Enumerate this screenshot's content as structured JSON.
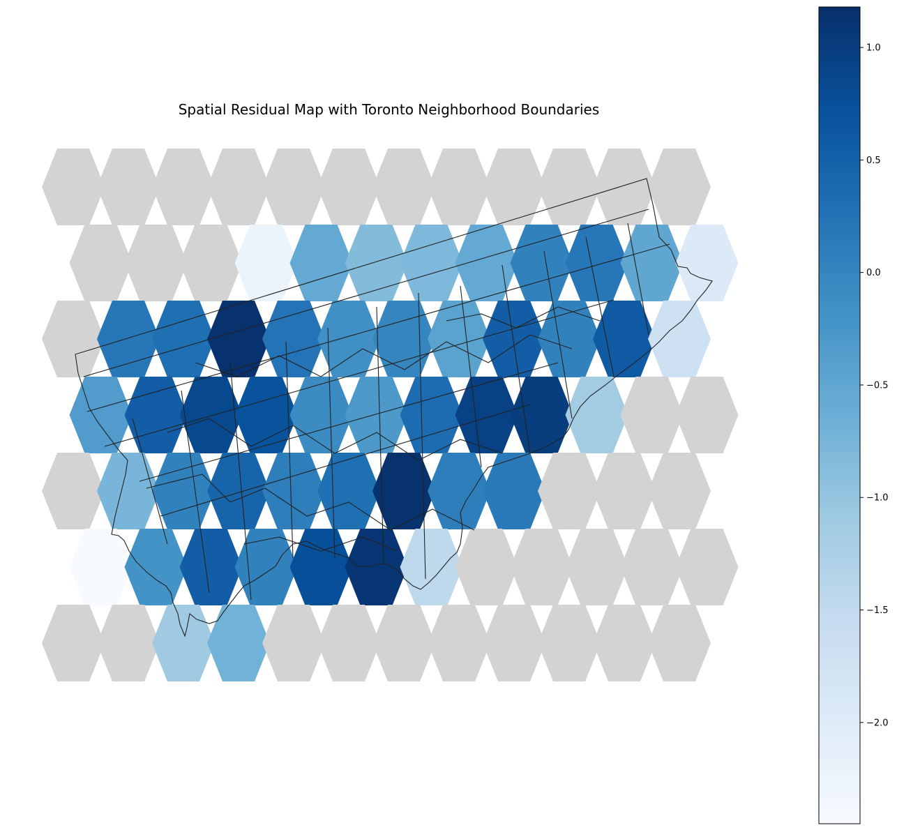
{
  "title": "Spatial Residual Map with Toronto Neighborhood Boundaries",
  "colorbar": {
    "colormap": "Blues",
    "range": [
      -2.45,
      1.18
    ],
    "ticks": [
      {
        "value": 1.0,
        "label": "1.0"
      },
      {
        "value": 0.5,
        "label": "0.5"
      },
      {
        "value": 0.0,
        "label": "0.0"
      },
      {
        "value": -0.5,
        "label": "−0.5"
      },
      {
        "value": -1.0,
        "label": "−1.0"
      },
      {
        "value": -1.5,
        "label": "−1.5"
      },
      {
        "value": -2.0,
        "label": "−2.0"
      }
    ]
  },
  "colors": {
    "no_data": "#d3d3d3",
    "boundary": "#222222",
    "blues_ramp": [
      "#f7fbff",
      "#deebf7",
      "#c6dbef",
      "#9ecae1",
      "#6baed6",
      "#4292c6",
      "#2171b5",
      "#08519c",
      "#08306b"
    ]
  },
  "chart_data": {
    "type": "heatmap",
    "geometry": "hexagonal grid of residual values; null = no data (grey)",
    "rows": [
      [
        null,
        null,
        null,
        null,
        null,
        null,
        null,
        null,
        null,
        null,
        null,
        null
      ],
      [
        null,
        null,
        null,
        -2.25,
        -0.55,
        -0.85,
        -0.8,
        -0.55,
        0.05,
        0.2,
        -0.5,
        -1.95
      ],
      [
        null,
        0.2,
        0.3,
        1.15,
        0.25,
        -0.15,
        0.0,
        -0.45,
        0.55,
        0.05,
        0.6,
        -1.7
      ],
      [
        -0.35,
        0.55,
        0.85,
        0.7,
        -0.1,
        -0.3,
        0.35,
        0.95,
        1.0,
        -1.15,
        null,
        null
      ],
      [
        null,
        -0.75,
        0.05,
        0.45,
        0.1,
        0.3,
        1.15,
        0.1,
        0.15,
        null,
        null,
        null
      ],
      [
        -2.45,
        -0.2,
        0.55,
        0.05,
        0.75,
        1.1,
        -1.45,
        null,
        null,
        null,
        null,
        null
      ],
      [
        null,
        null,
        -1.1,
        -0.7,
        null,
        null,
        null,
        null,
        null,
        null,
        null,
        null
      ]
    ],
    "row_offsets": [
      0,
      0.5,
      0,
      0.5,
      0,
      0.5,
      0
    ]
  }
}
